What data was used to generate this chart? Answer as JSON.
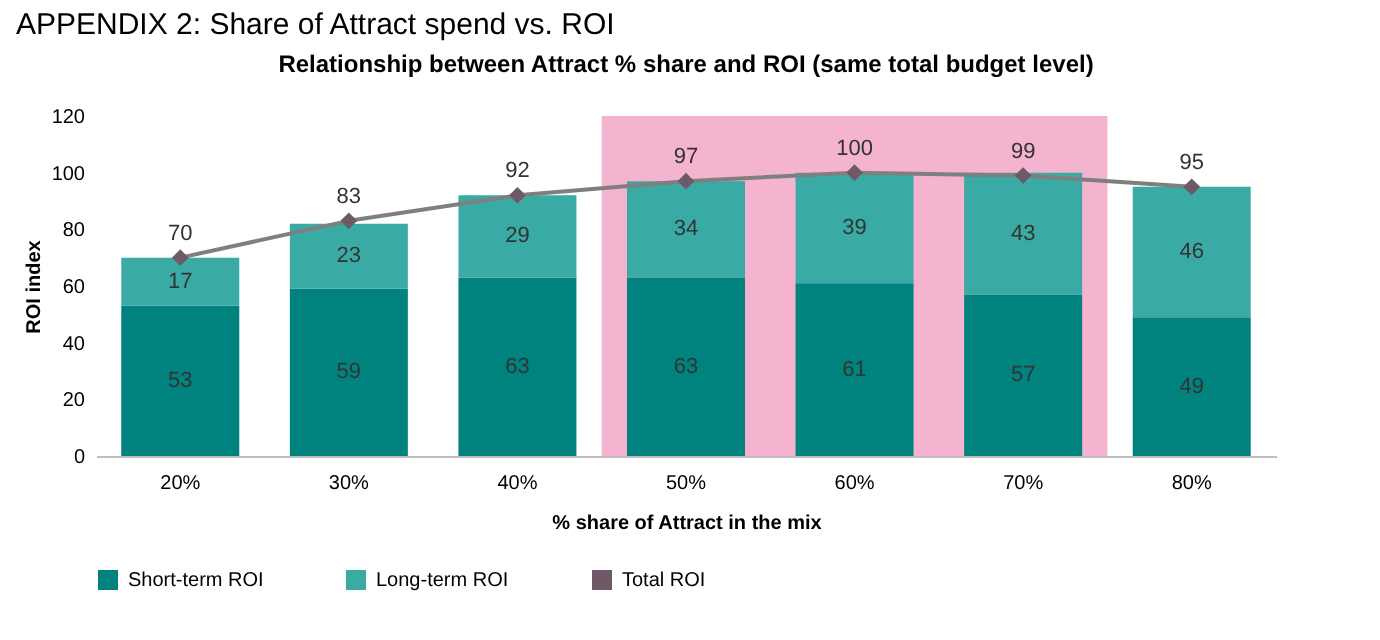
{
  "chart_data": {
    "type": "bar",
    "title": "APPENDIX 2: Share of Attract spend vs. ROI",
    "subtitle": "Relationship between Attract % share and ROI (same total budget level)",
    "xlabel": "% share of Attract in the mix",
    "ylabel": "ROI index",
    "categories": [
      "20%",
      "30%",
      "40%",
      "50%",
      "60%",
      "70%",
      "80%"
    ],
    "stacked": true,
    "series": [
      {
        "name": "Short-term ROI",
        "color": "#00827f",
        "values": [
          53,
          59,
          63,
          63,
          61,
          57,
          49
        ]
      },
      {
        "name": "Long-term ROI",
        "color": "#3aaaa4",
        "values": [
          17,
          23,
          29,
          34,
          39,
          43,
          46
        ]
      },
      {
        "name": "Total ROI",
        "type": "line",
        "color": "#6e5a66",
        "values": [
          70,
          83,
          92,
          97,
          100,
          99,
          95
        ],
        "marker": "diamond"
      }
    ],
    "bands": [
      {
        "axis": "x",
        "from": "50%",
        "to": "70%",
        "color": "#f4b3cf"
      }
    ],
    "ylim": [
      0,
      120
    ],
    "yticks": [
      0,
      20,
      40,
      60,
      80,
      100,
      120
    ],
    "grid": false,
    "legend": "bottom",
    "data_labels": true
  }
}
